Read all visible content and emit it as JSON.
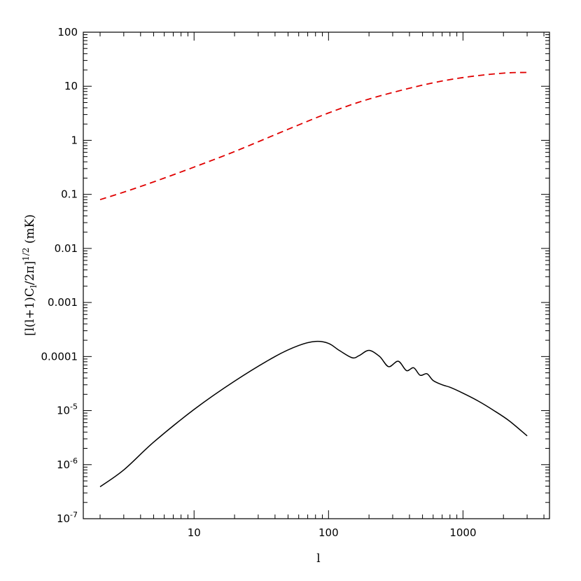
{
  "chart_data": {
    "type": "line",
    "title": "",
    "xlabel": "l",
    "ylabel": "[l(l+1)C_l/2π]^{1/2} (mK)",
    "x_scale": "log",
    "y_scale": "log",
    "xlim": [
      1.5,
      4400
    ],
    "ylim": [
      1e-07,
      100
    ],
    "grid": false,
    "legend": "none",
    "x_ticks": [
      {
        "value": 10,
        "label": "10"
      },
      {
        "value": 100,
        "label": "100"
      },
      {
        "value": 1000,
        "label": "1000"
      }
    ],
    "y_ticks": [
      {
        "value": 100,
        "label": "100"
      },
      {
        "value": 10,
        "label": "10"
      },
      {
        "value": 1,
        "label": "1"
      },
      {
        "value": 0.1,
        "label": "0.1"
      },
      {
        "value": 0.01,
        "label": "0.01"
      },
      {
        "value": 0.001,
        "label": "0.001"
      },
      {
        "value": 0.0001,
        "label": "0.0001"
      },
      {
        "value": 1e-05,
        "label": "10",
        "exp": "-5"
      },
      {
        "value": 1e-06,
        "label": "10",
        "exp": "-6"
      },
      {
        "value": 1e-07,
        "label": "10",
        "exp": "-7"
      }
    ],
    "series": [
      {
        "style": "dashed",
        "color": "#e00000",
        "x": [
          2,
          3,
          5,
          10,
          20,
          50,
          100,
          200,
          500,
          1000,
          2000,
          3000
        ],
        "y": [
          0.08,
          0.11,
          0.17,
          0.32,
          0.62,
          1.6,
          3.2,
          5.8,
          10.5,
          14.5,
          17.5,
          18
        ]
      },
      {
        "style": "solid",
        "color": "#000000",
        "x": [
          2,
          3,
          5,
          10,
          20,
          40,
          60,
          80,
          100,
          120,
          150,
          170,
          200,
          240,
          280,
          330,
          380,
          430,
          480,
          540,
          600,
          700,
          800,
          1000,
          1300,
          1700,
          2200,
          3000
        ],
        "y": [
          3.9e-07,
          8e-07,
          2.6e-06,
          1.05e-05,
          3.5e-05,
          0.0001,
          0.00016,
          0.00019,
          0.000175,
          0.00013,
          9.5e-05,
          0.000105,
          0.00013,
          0.0001,
          6.5e-05,
          8.2e-05,
          5.5e-05,
          6.2e-05,
          4.5e-05,
          4.8e-05,
          3.6e-05,
          3e-05,
          2.7e-05,
          2.1e-05,
          1.5e-05,
          1e-05,
          6.5e-06,
          3.4e-06
        ]
      }
    ]
  }
}
